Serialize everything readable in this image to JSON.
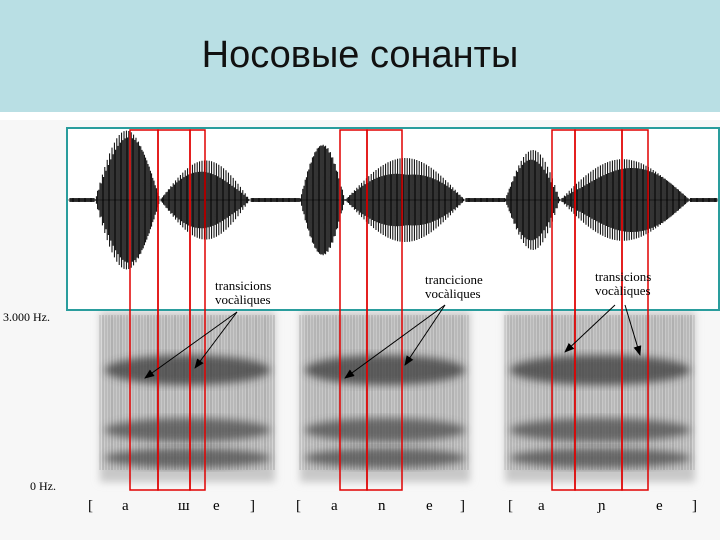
{
  "title": "Носовые сонанты",
  "figure": {
    "axis_labels": {
      "top": "3.000 Hz.",
      "bottom": "0 Hz."
    },
    "annotations": [
      [
        "transicions",
        "vocàliques"
      ],
      [
        "trancicione",
        "vocàliques"
      ],
      [
        "transicions",
        "vocàliques"
      ]
    ],
    "transcriptions": [
      [
        "[",
        "a",
        "ш",
        "e",
        "]"
      ],
      [
        "[",
        "a",
        "n",
        "e",
        "]"
      ],
      [
        "[",
        "a",
        "ɲ",
        "e",
        "]"
      ]
    ]
  }
}
